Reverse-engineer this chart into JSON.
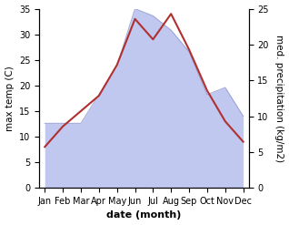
{
  "months": [
    "Jan",
    "Feb",
    "Mar",
    "Apr",
    "May",
    "Jun",
    "Jul",
    "Aug",
    "Sep",
    "Oct",
    "Nov",
    "Dec"
  ],
  "temperature": [
    8,
    12,
    15,
    18,
    24,
    33,
    29,
    34,
    27,
    19,
    13,
    9
  ],
  "precipitation": [
    9,
    9,
    9,
    13,
    17,
    25,
    24,
    22,
    19,
    13,
    14,
    10
  ],
  "temp_color": "#b03030",
  "precip_fill_color": "#c0c8f0",
  "precip_line_color": "#9098d0",
  "temp_ylim": [
    0,
    35
  ],
  "precip_ylim": [
    0,
    25
  ],
  "temp_yticks": [
    0,
    5,
    10,
    15,
    20,
    25,
    30,
    35
  ],
  "precip_yticks": [
    0,
    5,
    10,
    15,
    20,
    25
  ],
  "ylabel_left": "max temp (C)",
  "ylabel_right": "med. precipitation (kg/m2)",
  "xlabel": "date (month)",
  "background_color": "#ffffff",
  "axis_fontsize": 7.5,
  "tick_fontsize": 7,
  "xlabel_fontsize": 8
}
